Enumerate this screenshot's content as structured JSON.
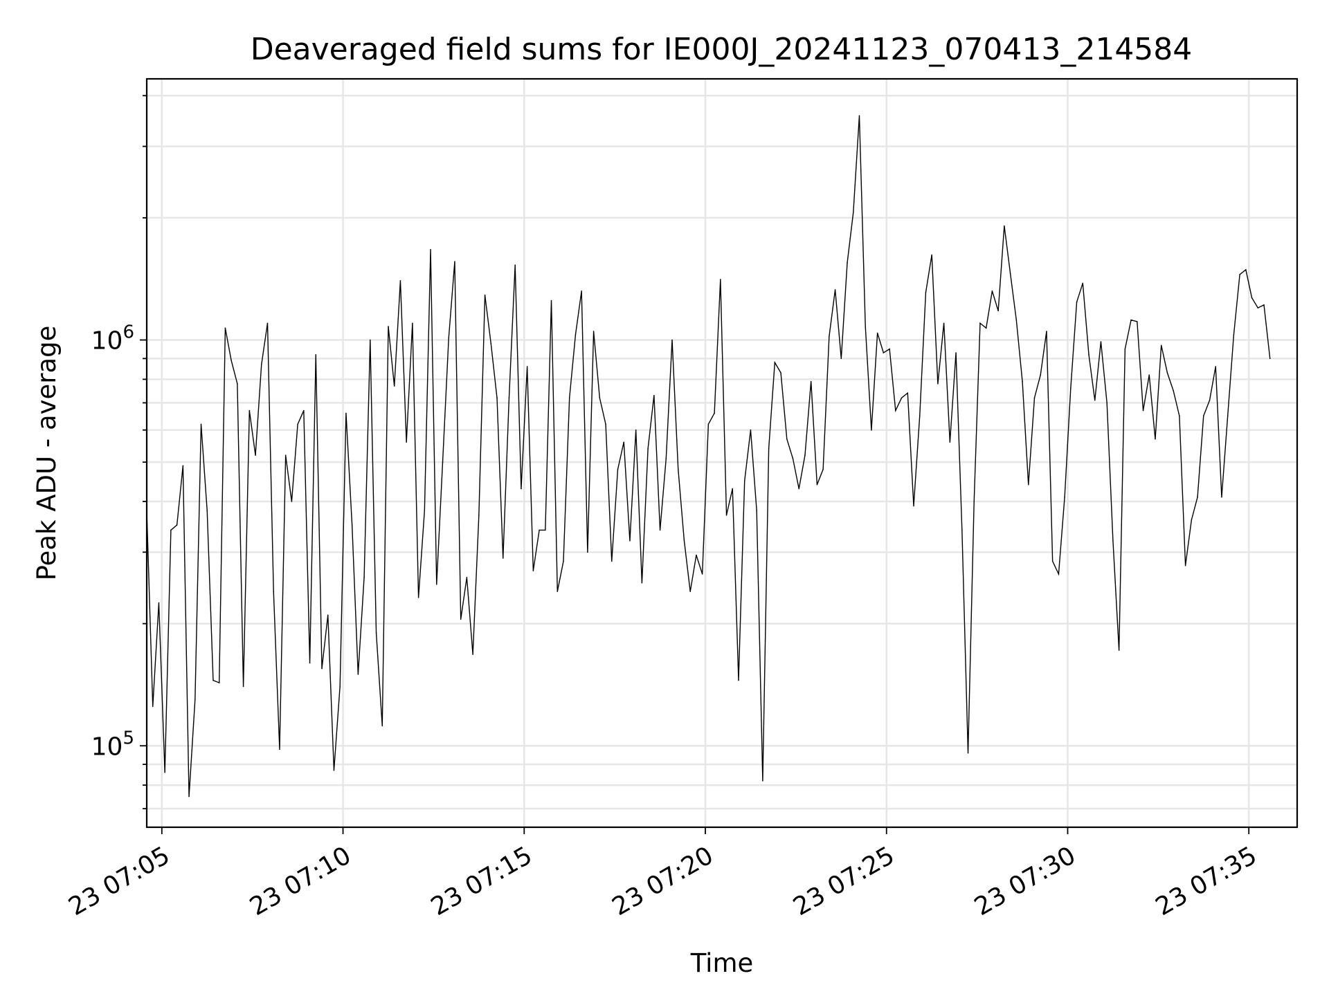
{
  "chart_data": {
    "type": "line",
    "title": "Deaveraged field sums for IE000J_20241123_070413_214584",
    "xlabel": "Time",
    "ylabel": "Peak ADU - average",
    "y_scale": "log",
    "ylim": [
      63000,
      4400000
    ],
    "xlim": [
      "2024-11-23 07:04:35",
      "2024-11-23 07:36:20"
    ],
    "grid": true,
    "line_color": "#000000",
    "x_ticks": [
      "2024-11-23 07:05",
      "2024-11-23 07:10",
      "2024-11-23 07:15",
      "2024-11-23 07:20",
      "2024-11-23 07:25",
      "2024-11-23 07:30",
      "2024-11-23 07:35"
    ],
    "x_tick_labels": [
      "23 07:05",
      "23 07:10",
      "23 07:15",
      "23 07:20",
      "23 07:25",
      "23 07:30",
      "23 07:35"
    ],
    "y_ticks": [
      100000,
      1000000
    ],
    "y_tick_base": "10",
    "y_tick_exponents": [
      "5",
      "6"
    ],
    "series": [
      {
        "x_start": "2024-11-23 07:04:35",
        "interval_seconds": 10,
        "values": [
          380000,
          125000,
          225000,
          86000,
          340000,
          350000,
          490000,
          75000,
          130000,
          620000,
          380000,
          145000,
          143000,
          1070000,
          890000,
          780000,
          140000,
          670000,
          520000,
          870000,
          1100000,
          240000,
          98000,
          520000,
          400000,
          620000,
          670000,
          160000,
          920000,
          155000,
          210000,
          87000,
          140000,
          660000,
          350000,
          150000,
          260000,
          1000000,
          190000,
          112000,
          1080000,
          770000,
          1400000,
          560000,
          1100000,
          232000,
          380000,
          1670000,
          250000,
          500000,
          1010000,
          1560000,
          205000,
          260000,
          168000,
          370000,
          1290000,
          980000,
          720000,
          290000,
          720000,
          1530000,
          430000,
          860000,
          270000,
          340000,
          340000,
          1250000,
          240000,
          285000,
          720000,
          1030000,
          1320000,
          300000,
          1050000,
          720000,
          620000,
          285000,
          480000,
          560000,
          320000,
          600000,
          252000,
          540000,
          730000,
          340000,
          510000,
          1000000,
          480000,
          320000,
          240000,
          295000,
          265000,
          620000,
          660000,
          1410000,
          370000,
          430000,
          145000,
          450000,
          600000,
          380000,
          82000,
          540000,
          880000,
          830000,
          570000,
          510000,
          430000,
          520000,
          790000,
          440000,
          480000,
          1020000,
          1330000,
          900000,
          1550000,
          2060000,
          3570000,
          1080000,
          600000,
          1040000,
          930000,
          950000,
          670000,
          720000,
          740000,
          390000,
          650000,
          1310000,
          1620000,
          780000,
          1100000,
          560000,
          930000,
          340000,
          96000,
          400000,
          1100000,
          1070000,
          1320000,
          1180000,
          1910000,
          1460000,
          1120000,
          790000,
          440000,
          720000,
          820000,
          1050000,
          285000,
          265000,
          410000,
          760000,
          1240000,
          1380000,
          920000,
          710000,
          990000,
          700000,
          320000,
          172000,
          950000,
          1120000,
          1110000,
          670000,
          820000,
          570000,
          970000,
          830000,
          750000,
          650000,
          278000,
          360000,
          410000,
          650000,
          710000,
          860000,
          410000,
          650000,
          1030000,
          1450000,
          1490000,
          1270000,
          1200000,
          1220000,
          900000
        ]
      }
    ]
  }
}
